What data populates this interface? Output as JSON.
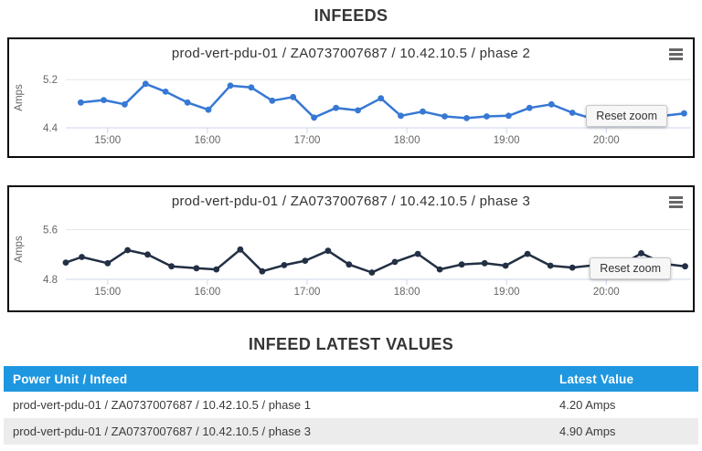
{
  "page": {
    "infeeds_title": "INFEEDS",
    "latest_values_title": "INFEED LATEST VALUES"
  },
  "chart_data": [
    {
      "type": "line",
      "title": "prod-vert-pdu-01 / ZA0737007687 / 10.42.10.5 / phase 2",
      "ylabel": "Amps",
      "reset_zoom_label": "Reset zoom",
      "line_color": "#3778d4",
      "grid_color": "#e6e6e6",
      "axis_color": "#ccd6eb",
      "ylim": [
        4.4,
        5.4
      ],
      "yticks": [
        4.4,
        5.2
      ],
      "ytick_labels": [
        "4.4",
        "5.2"
      ],
      "xlim_hours": [
        14.58,
        20.85
      ],
      "xticks": [
        {
          "hour": 15,
          "label": "15:00"
        },
        {
          "hour": 16,
          "label": "16:00"
        },
        {
          "hour": 17,
          "label": "17:00"
        },
        {
          "hour": 18,
          "label": "18:00"
        },
        {
          "hour": 19,
          "label": "19:00"
        },
        {
          "hour": 20,
          "label": "20:00"
        }
      ],
      "points": [
        [
          14.73,
          4.82
        ],
        [
          14.96,
          4.86
        ],
        [
          15.17,
          4.79
        ],
        [
          15.38,
          5.13
        ],
        [
          15.58,
          5.0
        ],
        [
          15.8,
          4.82
        ],
        [
          16.01,
          4.7
        ],
        [
          16.23,
          5.1
        ],
        [
          16.44,
          5.07
        ],
        [
          16.65,
          4.85
        ],
        [
          16.86,
          4.91
        ],
        [
          17.07,
          4.57
        ],
        [
          17.29,
          4.73
        ],
        [
          17.51,
          4.69
        ],
        [
          17.74,
          4.89
        ],
        [
          17.94,
          4.6
        ],
        [
          18.16,
          4.67
        ],
        [
          18.38,
          4.59
        ],
        [
          18.6,
          4.56
        ],
        [
          18.8,
          4.59
        ],
        [
          19.02,
          4.6
        ],
        [
          19.23,
          4.73
        ],
        [
          19.45,
          4.79
        ],
        [
          19.66,
          4.65
        ],
        [
          19.89,
          4.54
        ],
        [
          20.12,
          4.5
        ],
        [
          20.35,
          4.54
        ],
        [
          20.58,
          4.6
        ],
        [
          20.78,
          4.64
        ]
      ]
    },
    {
      "type": "line",
      "title": "prod-vert-pdu-01 / ZA0737007687 / 10.42.10.5 / phase 3",
      "ylabel": "Amps",
      "reset_zoom_label": "Reset zoom",
      "line_color": "#222f44",
      "grid_color": "#e6e6e6",
      "axis_color": "#ccd6eb",
      "ylim": [
        4.8,
        5.77
      ],
      "yticks": [
        4.8,
        5.6
      ],
      "ytick_labels": [
        "4.8",
        "5.6"
      ],
      "xlim_hours": [
        14.58,
        20.85
      ],
      "xticks": [
        {
          "hour": 15,
          "label": "15:00"
        },
        {
          "hour": 16,
          "label": "16:00"
        },
        {
          "hour": 17,
          "label": "17:00"
        },
        {
          "hour": 18,
          "label": "18:00"
        },
        {
          "hour": 19,
          "label": "19:00"
        },
        {
          "hour": 20,
          "label": "20:00"
        }
      ],
      "points": [
        [
          14.58,
          5.07
        ],
        [
          14.74,
          5.16
        ],
        [
          15.0,
          5.06
        ],
        [
          15.2,
          5.27
        ],
        [
          15.4,
          5.2
        ],
        [
          15.64,
          5.01
        ],
        [
          15.89,
          4.98
        ],
        [
          16.09,
          4.96
        ],
        [
          16.33,
          5.28
        ],
        [
          16.55,
          4.93
        ],
        [
          16.77,
          5.03
        ],
        [
          16.98,
          5.1
        ],
        [
          17.21,
          5.26
        ],
        [
          17.42,
          5.04
        ],
        [
          17.65,
          4.91
        ],
        [
          17.88,
          5.08
        ],
        [
          18.11,
          5.21
        ],
        [
          18.33,
          4.96
        ],
        [
          18.55,
          5.04
        ],
        [
          18.78,
          5.06
        ],
        [
          18.99,
          5.02
        ],
        [
          19.21,
          5.21
        ],
        [
          19.44,
          5.02
        ],
        [
          19.66,
          4.99
        ],
        [
          19.89,
          5.03
        ],
        [
          20.12,
          5.0
        ],
        [
          20.35,
          5.22
        ],
        [
          20.58,
          5.05
        ],
        [
          20.79,
          5.01
        ]
      ]
    }
  ],
  "table": {
    "header_bg": "#1e97e0",
    "headers": [
      "Power Unit / Infeed",
      "Latest Value"
    ],
    "rows": [
      {
        "infeed": "prod-vert-pdu-01 / ZA0737007687 / 10.42.10.5 / phase 1",
        "value": "4.20 Amps"
      },
      {
        "infeed": "prod-vert-pdu-01 / ZA0737007687 / 10.42.10.5 / phase 3",
        "value": "4.90 Amps"
      }
    ]
  }
}
